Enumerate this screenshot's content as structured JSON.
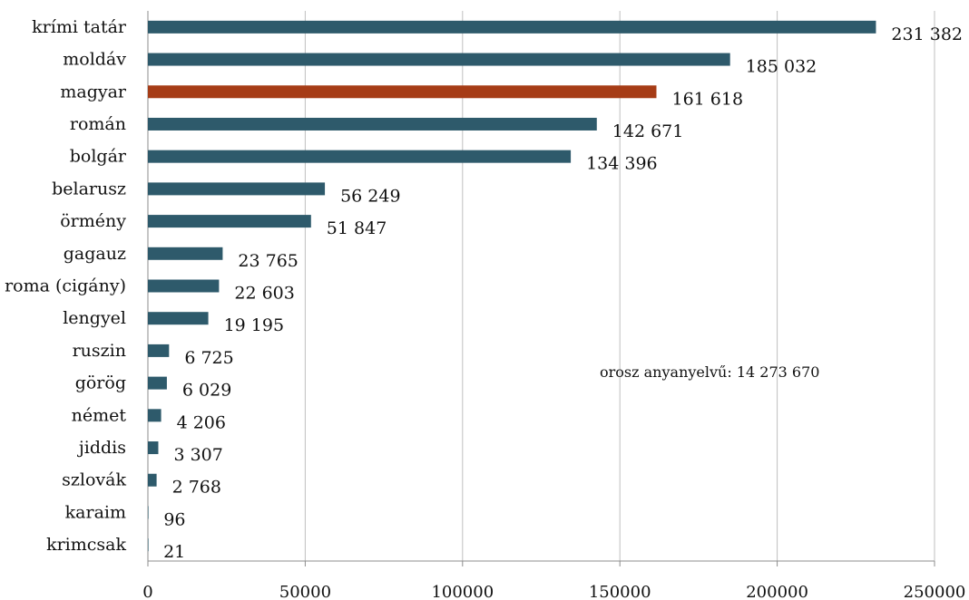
{
  "chart_data": {
    "type": "bar",
    "orientation": "horizontal",
    "categories": [
      "krími tatár",
      "moldáv",
      "magyar",
      "román",
      "bolgár",
      "belarusz",
      "örmény",
      "gagauz",
      "roma (cigány)",
      "lengyel",
      "ruszin",
      "görög",
      "német",
      "jiddis",
      "szlovák",
      "karaim",
      "krimcsak"
    ],
    "values": [
      231382,
      185032,
      161618,
      142671,
      134396,
      56249,
      51847,
      23765,
      22603,
      19195,
      6725,
      6029,
      4206,
      3307,
      2768,
      96,
      21
    ],
    "value_labels": [
      "231 382",
      "185 032",
      "161 618",
      "142 671",
      "134 396",
      "56 249",
      "51 847",
      "23 765",
      "22 603",
      "19 195",
      "6 725",
      "6 029",
      "4 206",
      "3 307",
      "2 768",
      "96",
      "21"
    ],
    "highlight_index": 2,
    "colors": {
      "bar": "#2e5a6b",
      "highlight": "#a63c16"
    },
    "xlim": [
      0,
      250000
    ],
    "xticks": [
      0,
      50000,
      100000,
      150000,
      200000,
      250000
    ],
    "xtick_labels": [
      "0",
      "50000",
      "100000",
      "150000",
      "200000",
      "250000"
    ],
    "grid": true,
    "annotation": "orosz anyanyelvű: 14 273 670"
  }
}
